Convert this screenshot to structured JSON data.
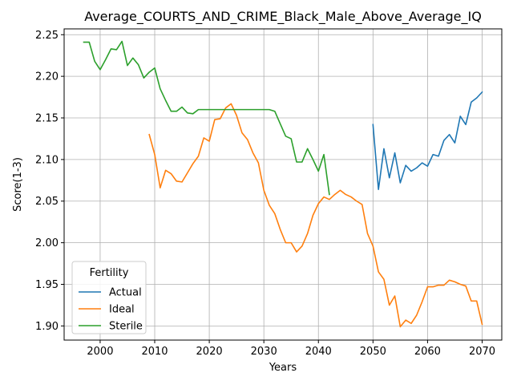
{
  "chart_data": {
    "type": "line",
    "title": "Average_COURTS_AND_CRIME_Black_Male_Above_Average_IQ",
    "xlabel": "Years",
    "ylabel": "Score(1-3)",
    "xlim": [
      1993.4,
      2073.6
    ],
    "ylim": [
      1.883,
      2.257
    ],
    "x_ticks": [
      2000,
      2010,
      2020,
      2030,
      2040,
      2050,
      2060,
      2070
    ],
    "y_ticks": [
      1.9,
      1.95,
      2.0,
      2.05,
      2.1,
      2.15,
      2.2,
      2.25
    ],
    "x_tick_labels": [
      "2000",
      "2010",
      "2020",
      "2030",
      "2040",
      "2050",
      "2060",
      "2070"
    ],
    "y_tick_labels": [
      "1.90",
      "1.95",
      "2.00",
      "2.05",
      "2.10",
      "2.15",
      "2.20",
      "2.25"
    ],
    "grid": true,
    "legend": {
      "title": "Fertility",
      "placement": "lower-left"
    },
    "series": [
      {
        "name": "Actual",
        "color": "#1f77b4",
        "x": [
          2050,
          2051,
          2052,
          2053,
          2054,
          2055,
          2056,
          2057,
          2058,
          2059,
          2060,
          2061,
          2062,
          2063,
          2064,
          2065,
          2066,
          2067,
          2068,
          2069,
          2070
        ],
        "y": [
          2.142,
          2.064,
          2.113,
          2.078,
          2.108,
          2.072,
          2.093,
          2.086,
          2.09,
          2.096,
          2.092,
          2.106,
          2.104,
          2.123,
          2.13,
          2.12,
          2.152,
          2.142,
          2.169,
          2.174,
          2.181
        ]
      },
      {
        "name": "Ideal",
        "color": "#ff7f0e",
        "x": [
          2009,
          2010,
          2011,
          2012,
          2013,
          2014,
          2015,
          2016,
          2017,
          2018,
          2019,
          2020,
          2021,
          2022,
          2023,
          2024,
          2025,
          2026,
          2027,
          2028,
          2029,
          2030,
          2031,
          2032,
          2033,
          2034,
          2035,
          2036,
          2037,
          2038,
          2039,
          2040,
          2041,
          2042,
          2043,
          2044,
          2045,
          2046,
          2047,
          2048,
          2049,
          2050,
          2051,
          2052,
          2053,
          2054,
          2055,
          2056,
          2057,
          2058,
          2059,
          2060,
          2061,
          2062,
          2063,
          2064,
          2065,
          2066,
          2067,
          2068,
          2069,
          2070
        ],
        "y": [
          2.13,
          2.106,
          2.066,
          2.087,
          2.083,
          2.074,
          2.073,
          2.084,
          2.095,
          2.104,
          2.126,
          2.122,
          2.148,
          2.149,
          2.162,
          2.167,
          2.153,
          2.132,
          2.124,
          2.108,
          2.096,
          2.063,
          2.045,
          2.035,
          2.016,
          2.0,
          2.0,
          1.989,
          1.996,
          2.011,
          2.033,
          2.047,
          2.055,
          2.052,
          2.058,
          2.063,
          2.058,
          2.055,
          2.05,
          2.046,
          2.011,
          1.996,
          1.965,
          1.956,
          1.925,
          1.936,
          1.899,
          1.907,
          1.903,
          1.913,
          1.929,
          1.947,
          1.947,
          1.949,
          1.949,
          1.955,
          1.953,
          1.95,
          1.948,
          1.93,
          1.93,
          1.902
        ]
      },
      {
        "name": "Sterile",
        "color": "#2ca02c",
        "x": [
          1997,
          1998,
          1999,
          2000,
          2001,
          2002,
          2003,
          2004,
          2005,
          2006,
          2007,
          2008,
          2009,
          2010,
          2011,
          2012,
          2013,
          2014,
          2015,
          2016,
          2017,
          2018,
          2019,
          2020,
          2021,
          2022,
          2023,
          2024,
          2025,
          2026,
          2027,
          2028,
          2029,
          2030,
          2031,
          2032,
          2033,
          2034,
          2035,
          2036,
          2037,
          2038,
          2039,
          2040,
          2041,
          2042
        ],
        "y": [
          2.241,
          2.241,
          2.218,
          2.208,
          2.22,
          2.233,
          2.232,
          2.242,
          2.213,
          2.222,
          2.214,
          2.198,
          2.205,
          2.21,
          2.185,
          2.171,
          2.158,
          2.158,
          2.163,
          2.156,
          2.155,
          2.16,
          2.16,
          2.16,
          2.16,
          2.16,
          2.16,
          2.16,
          2.16,
          2.16,
          2.16,
          2.16,
          2.16,
          2.16,
          2.16,
          2.158,
          2.143,
          2.128,
          2.125,
          2.097,
          2.097,
          2.113,
          2.1,
          2.086,
          2.106,
          2.058
        ]
      }
    ]
  }
}
